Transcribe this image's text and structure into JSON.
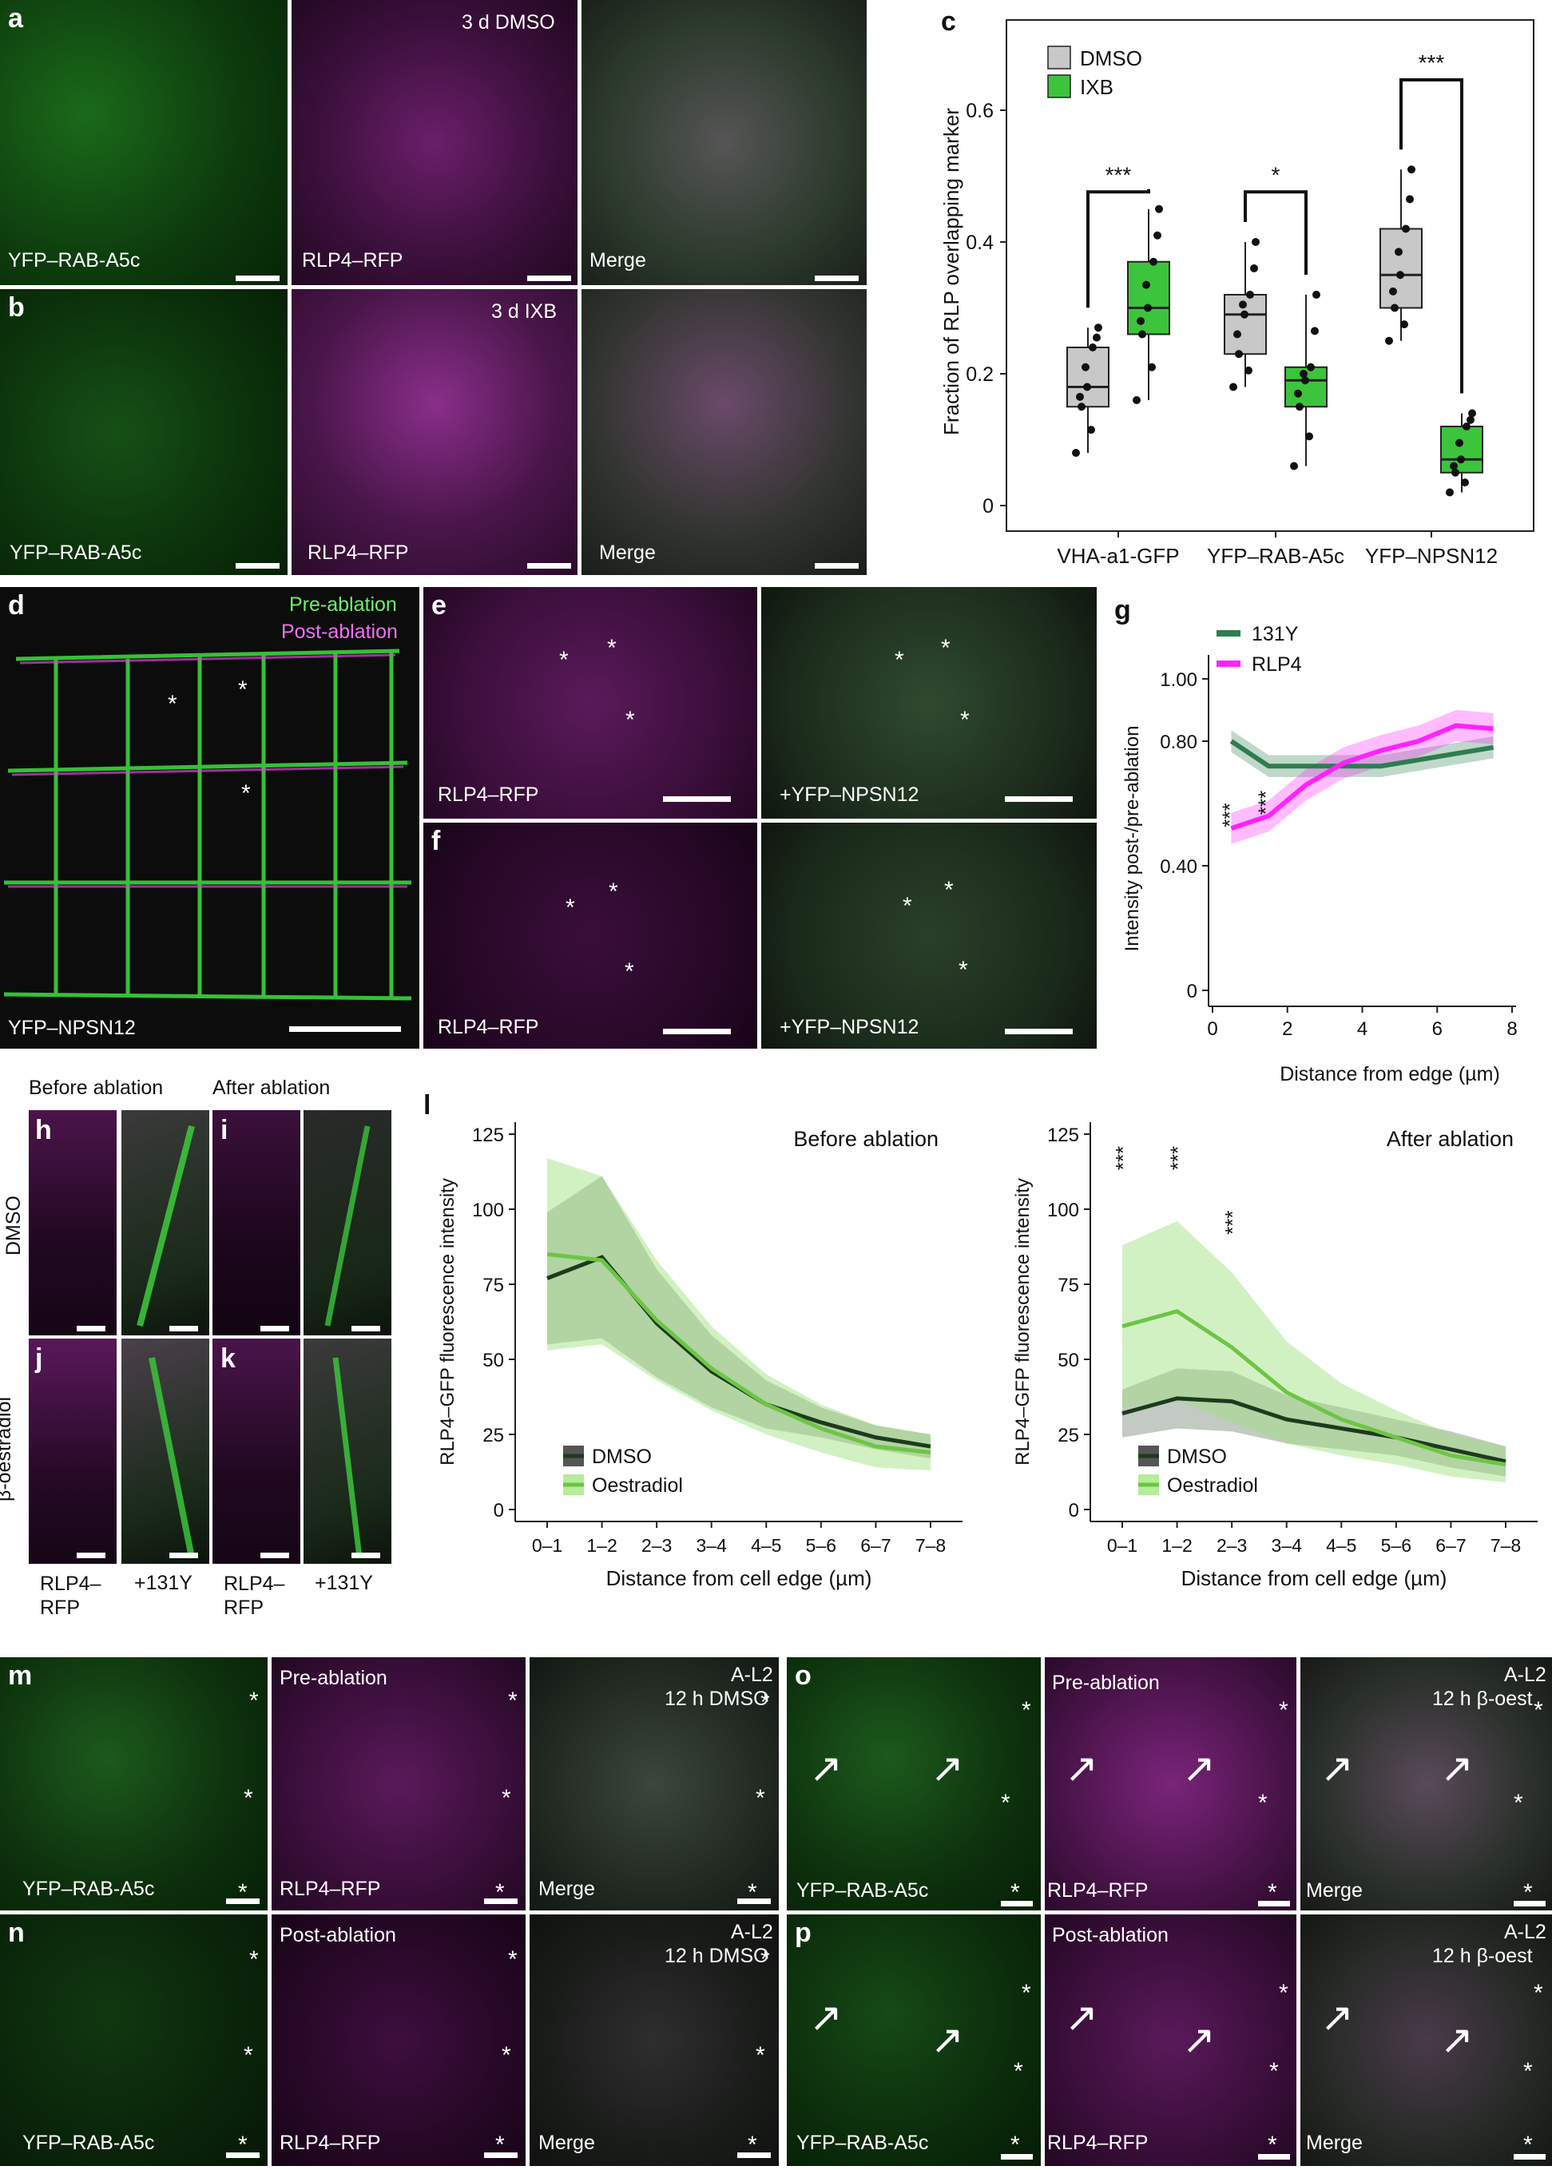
{
  "panels": {
    "a": {
      "letter": "a",
      "labels": [
        "YFP–RAB-A5c",
        "RLP4–RFP",
        "Merge"
      ],
      "condition": "3 d DMSO"
    },
    "b": {
      "letter": "b",
      "labels": [
        "YFP–RAB-A5c",
        "RLP4–RFP",
        "Merge"
      ],
      "condition": "3 d IXB"
    },
    "d": {
      "letter": "d",
      "label": "YFP–NPSN12",
      "legend_pre": "Pre-ablation",
      "legend_post": "Post-ablation"
    },
    "e": {
      "letter": "e",
      "labels": [
        "RLP4–RFP",
        "+YFP–NPSN12"
      ]
    },
    "f": {
      "letter": "f",
      "labels": [
        "RLP4–RFP",
        "+YFP–NPSN12"
      ]
    },
    "hk": {
      "letters": [
        "h",
        "i",
        "j",
        "k"
      ],
      "before": "Before ablation",
      "after": "After ablation",
      "row1": "DMSO",
      "row2": "β-oestradiol",
      "col_labels": [
        "RLP4–\nRFP",
        "+131Y",
        "RLP4–\nRFP",
        "+131Y"
      ]
    },
    "m": {
      "letter": "m",
      "labels": [
        "YFP–RAB-A5c",
        "RLP4–RFP",
        "Merge"
      ],
      "stage": "Pre-ablation",
      "condition_1": "A-L2",
      "condition_2": "12 h DMSO"
    },
    "n": {
      "letter": "n",
      "labels": [
        "YFP–RAB-A5c",
        "RLP4–RFP",
        "Merge"
      ],
      "stage": "Post-ablation",
      "condition_1": "A-L2",
      "condition_2": "12 h DMSO"
    },
    "o": {
      "letter": "o",
      "labels": [
        "YFP–RAB-A5c",
        "RLP4–RFP",
        "Merge"
      ],
      "stage": "Pre-ablation",
      "condition_1": "A-L2",
      "condition_2": "12 h β-oest"
    },
    "p": {
      "letter": "p",
      "labels": [
        "YFP–RAB-A5c",
        "RLP4–RFP",
        "Merge"
      ],
      "stage": "Post-ablation",
      "condition_1": "A-L2",
      "condition_2": "12 h β-oest"
    }
  },
  "colors": {
    "green": "#2fd42f",
    "magenta": "#e040e0",
    "dmso_box": "#c8c8c8",
    "ixb_box": "#3cc43c",
    "g_131y": "#2e7d4f",
    "g_rlp4": "#ff22ff",
    "l_dmso": "#1e3a1e",
    "l_oest": "#6cc644"
  },
  "chart_data": [
    {
      "panel": "c",
      "type": "box",
      "ylabel": "Fraction of RLP overlapping marker",
      "ylim": [
        0,
        0.65
      ],
      "yticks": [
        "0",
        "0.2",
        "0.4",
        "0.6"
      ],
      "categories": [
        "VHA-a1-GFP",
        "YFP–RAB-A5c",
        "YFP–NPSN12"
      ],
      "legend": [
        "DMSO",
        "IXB"
      ],
      "significance": [
        "***",
        "*",
        "***"
      ],
      "series": [
        {
          "name": "DMSO",
          "boxes": [
            {
              "min": 0.08,
              "q1": 0.15,
              "median": 0.18,
              "q3": 0.24,
              "max": 0.27
            },
            {
              "min": 0.18,
              "q1": 0.23,
              "median": 0.29,
              "q3": 0.32,
              "max": 0.4
            },
            {
              "min": 0.25,
              "q1": 0.3,
              "median": 0.35,
              "q3": 0.42,
              "max": 0.51
            }
          ]
        },
        {
          "name": "IXB",
          "boxes": [
            {
              "min": 0.16,
              "q1": 0.26,
              "median": 0.3,
              "q3": 0.37,
              "max": 0.45
            },
            {
              "min": 0.06,
              "q1": 0.15,
              "median": 0.19,
              "q3": 0.21,
              "max": 0.32
            },
            {
              "min": 0.02,
              "q1": 0.05,
              "median": 0.07,
              "q3": 0.12,
              "max": 0.14
            }
          ]
        }
      ]
    },
    {
      "panel": "g",
      "type": "line",
      "xlabel": "Distance from edge (µm)",
      "ylabel": "Intensity post-/pre-ablation",
      "xlim": [
        0,
        8
      ],
      "ylim": [
        0,
        1.0
      ],
      "xticks": [
        "0",
        "2",
        "4",
        "6",
        "8"
      ],
      "yticks": [
        "0",
        "0.40",
        "0.80",
        "1.00"
      ],
      "significance": [
        "***",
        "***"
      ],
      "series": [
        {
          "name": "131Y",
          "x": [
            0.5,
            1.5,
            2.5,
            3.5,
            4.5,
            5.5,
            6.5,
            7.5
          ],
          "y": [
            0.8,
            0.72,
            0.72,
            0.72,
            0.72,
            0.74,
            0.76,
            0.78
          ]
        },
        {
          "name": "RLP4",
          "x": [
            0.5,
            1.5,
            2.5,
            3.5,
            4.5,
            5.5,
            6.5,
            7.5
          ],
          "y": [
            0.52,
            0.56,
            0.66,
            0.73,
            0.77,
            0.8,
            0.85,
            0.84
          ]
        }
      ]
    },
    {
      "panel": "l",
      "type": "line",
      "title": "Before ablation",
      "xlabel": "Distance from cell edge (µm)",
      "ylabel": "RLP4–GFP fluorescence intensity",
      "ylim": [
        0,
        125
      ],
      "yticks": [
        "0",
        "25",
        "50",
        "75",
        "100",
        "125"
      ],
      "categories": [
        "0–1",
        "1–2",
        "2–3",
        "3–4",
        "4–5",
        "5–6",
        "6–7",
        "7–8"
      ],
      "series": [
        {
          "name": "DMSO",
          "values": [
            77,
            84,
            62,
            46,
            35,
            29,
            24,
            21
          ]
        },
        {
          "name": "Oestradiol",
          "values": [
            85,
            83,
            63,
            47,
            35,
            27,
            21,
            19
          ]
        }
      ]
    },
    {
      "panel": "l2",
      "type": "line",
      "title": "After ablation",
      "xlabel": "Distance from cell edge (µm)",
      "ylabel": "RLP4–GFP fluorescence intensity",
      "ylim": [
        0,
        125
      ],
      "yticks": [
        "0",
        "25",
        "50",
        "75",
        "100",
        "125"
      ],
      "categories": [
        "0–1",
        "1–2",
        "2–3",
        "3–4",
        "4–5",
        "5–6",
        "6–7",
        "7–8"
      ],
      "significance": [
        "***",
        "***",
        "***"
      ],
      "series": [
        {
          "name": "DMSO",
          "values": [
            32,
            37,
            36,
            30,
            27,
            24,
            20,
            16
          ]
        },
        {
          "name": "Oestradiol",
          "values": [
            61,
            66,
            54,
            39,
            30,
            24,
            18,
            15
          ]
        }
      ]
    }
  ]
}
